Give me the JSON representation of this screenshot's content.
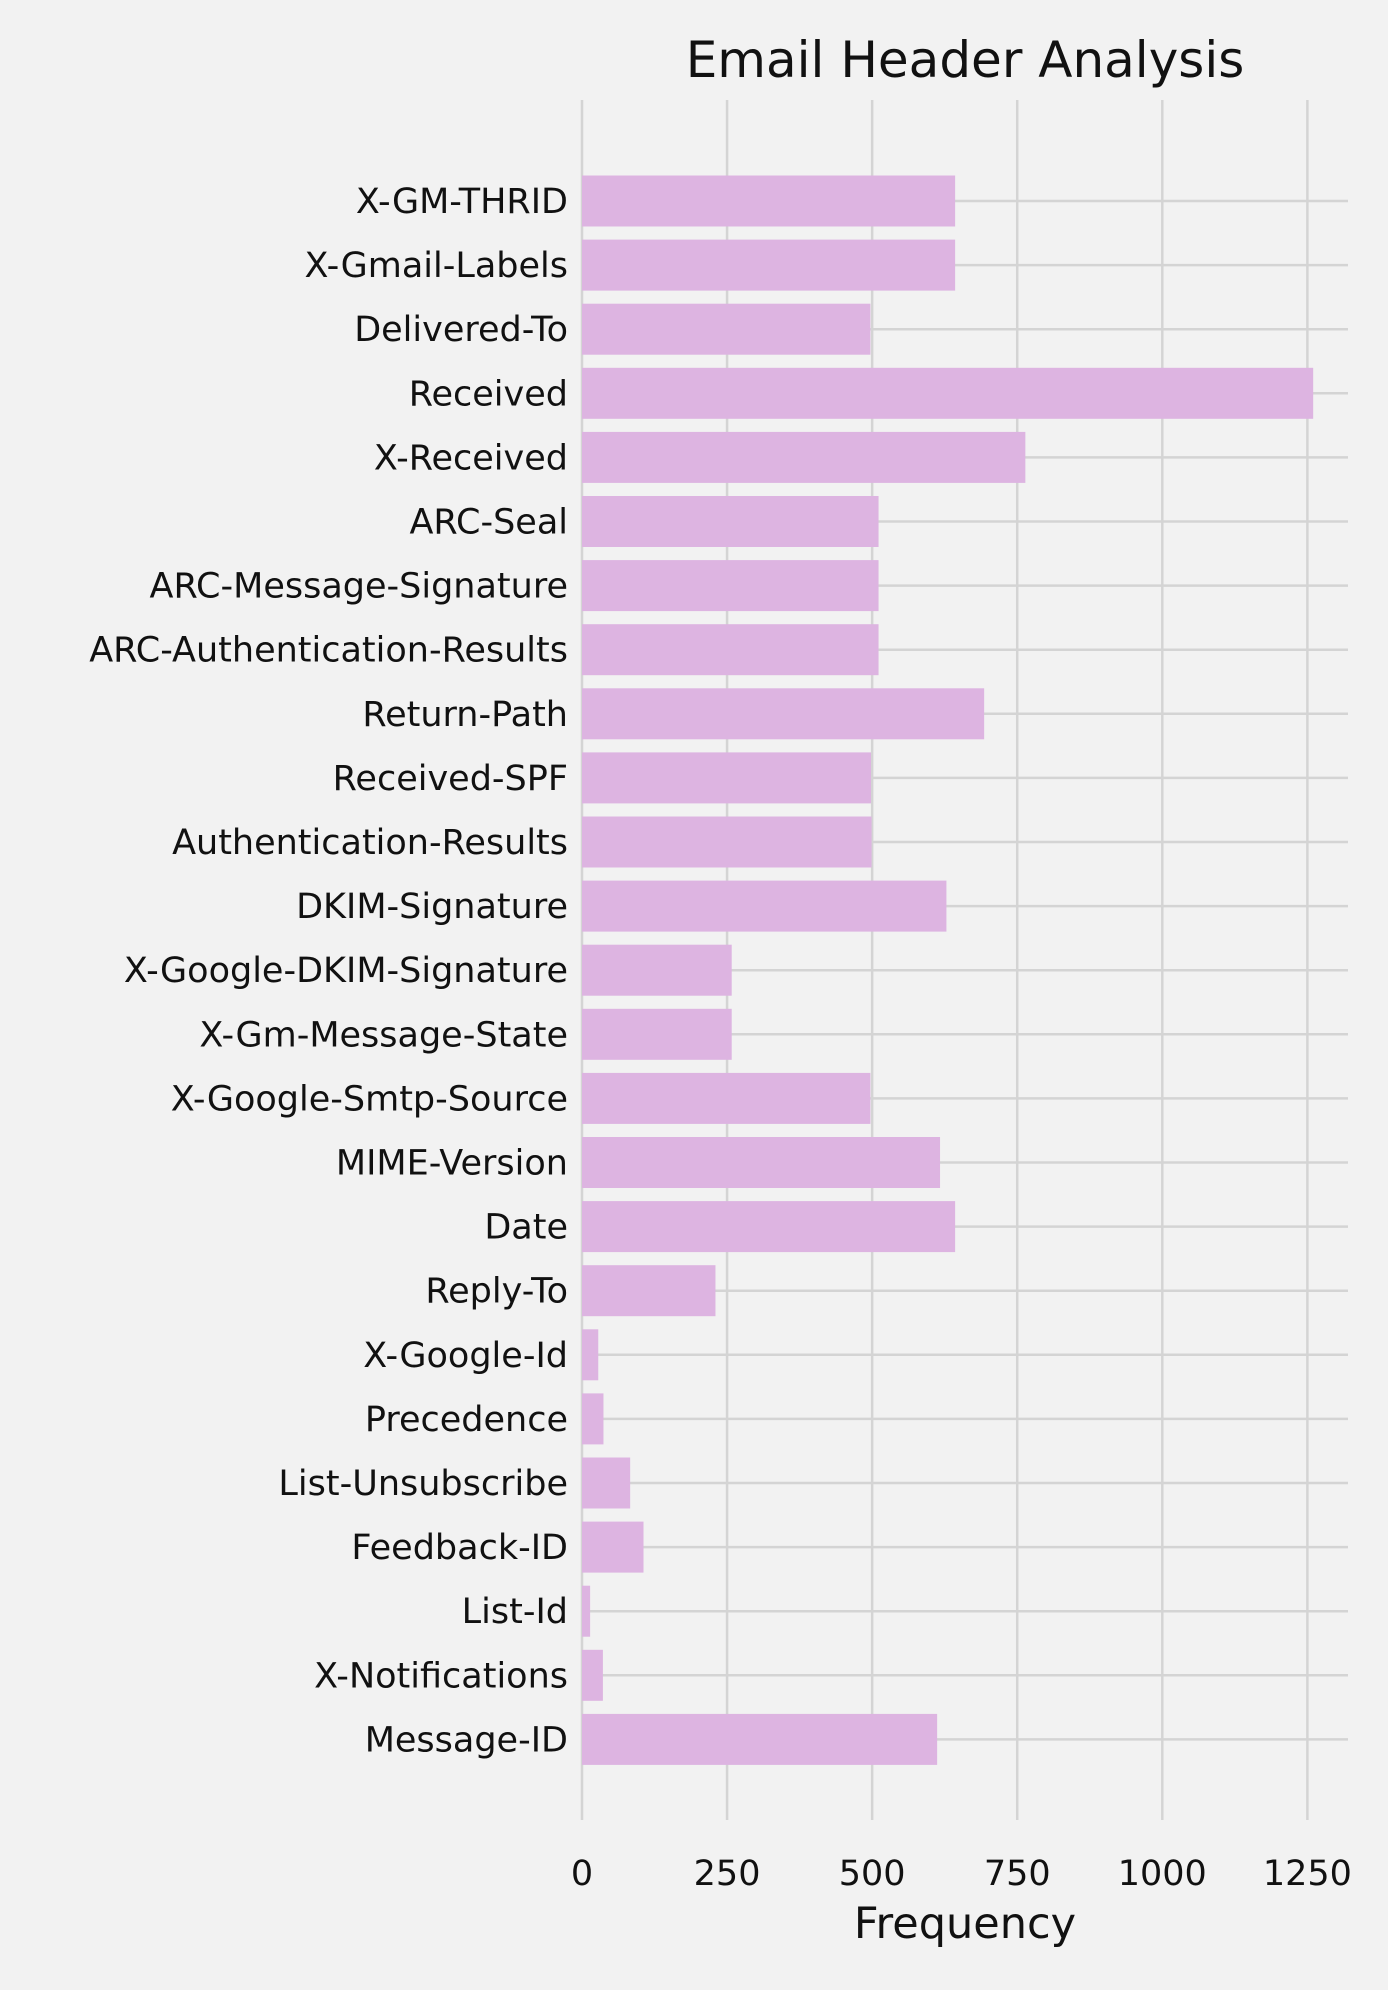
{
  "chart_data": {
    "type": "bar",
    "orientation": "horizontal",
    "title": "Email Header Analysis",
    "xlabel": "Frequency",
    "ylabel": "",
    "xlim": [
      0,
      1320
    ],
    "xticks": [
      0,
      250,
      500,
      750,
      1000,
      1250
    ],
    "xtick_labels": [
      "0",
      "250",
      "500",
      "750",
      "1000",
      "1250"
    ],
    "grid": true,
    "bar_color": "#ddb4e1",
    "background": "#f2f2f2",
    "categories": [
      "X-GM-THRID",
      "X-Gmail-Labels",
      "Delivered-To",
      "Received",
      "X-Received",
      "ARC-Seal",
      "ARC-Message-Signature",
      "ARC-Authentication-Results",
      "Return-Path",
      "Received-SPF",
      "Authentication-Results",
      "DKIM-Signature",
      "X-Google-DKIM-Signature",
      "X-Gm-Message-State",
      "X-Google-Smtp-Source",
      "MIME-Version",
      "Date",
      "Reply-To",
      "X-Google-Id",
      "Precedence",
      "List-Unsubscribe",
      "Feedback-ID",
      "List-Id",
      "X-Notifications",
      "Message-ID"
    ],
    "values": [
      643,
      643,
      497,
      1260,
      764,
      511,
      511,
      511,
      693,
      498,
      499,
      628,
      258,
      258,
      497,
      617,
      643,
      230,
      28,
      37,
      83,
      106,
      14,
      36,
      612
    ]
  }
}
